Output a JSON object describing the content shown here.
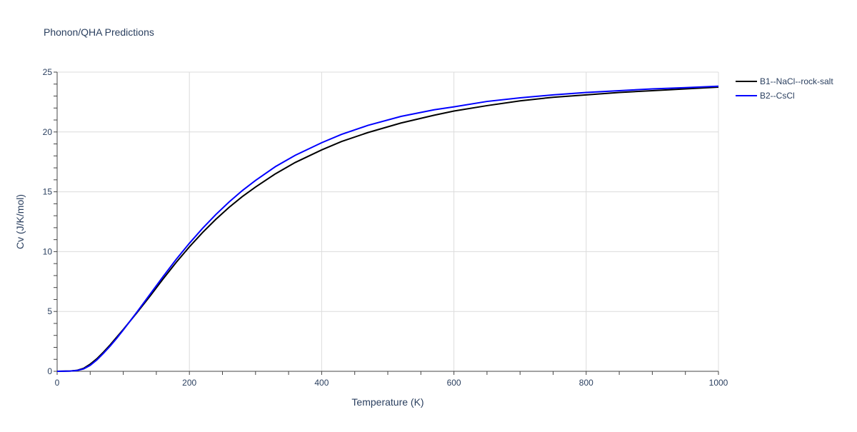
{
  "chart_data": {
    "type": "line",
    "title": "Phonon/QHA Predictions",
    "xlabel": "Temperature (K)",
    "ylabel": "Cv (J/K/mol)",
    "xlim": [
      0,
      1000
    ],
    "ylim": [
      0,
      25
    ],
    "x_ticks": [
      "0",
      "200",
      "400",
      "600",
      "800",
      "1000"
    ],
    "y_ticks": [
      "0",
      "5",
      "10",
      "15",
      "20",
      "25"
    ],
    "grid": true,
    "legend_position": "top-right",
    "x": [
      0,
      20,
      30,
      40,
      50,
      60,
      70,
      80,
      90,
      100,
      120,
      140,
      160,
      180,
      200,
      220,
      240,
      260,
      280,
      300,
      330,
      360,
      400,
      430,
      470,
      520,
      570,
      600,
      650,
      700,
      750,
      800,
      850,
      900,
      950,
      1000
    ],
    "series": [
      {
        "name": "B1--NaCl--rock-salt",
        "color": "#000000",
        "values": [
          0,
          0.02,
          0.08,
          0.25,
          0.6,
          1.05,
          1.6,
          2.2,
          2.85,
          3.5,
          4.85,
          6.25,
          7.7,
          9.1,
          10.4,
          11.6,
          12.7,
          13.7,
          14.6,
          15.4,
          16.5,
          17.45,
          18.5,
          19.2,
          19.95,
          20.75,
          21.4,
          21.75,
          22.2,
          22.6,
          22.9,
          23.1,
          23.3,
          23.45,
          23.6,
          23.75
        ]
      },
      {
        "name": "B2--CsCl",
        "color": "#0000ff",
        "values": [
          0,
          0.02,
          0.07,
          0.2,
          0.5,
          0.95,
          1.5,
          2.1,
          2.75,
          3.45,
          4.9,
          6.4,
          7.9,
          9.35,
          10.7,
          11.95,
          13.1,
          14.15,
          15.1,
          15.95,
          17.1,
          18.05,
          19.1,
          19.8,
          20.55,
          21.3,
          21.85,
          22.1,
          22.55,
          22.85,
          23.1,
          23.3,
          23.45,
          23.6,
          23.7,
          23.82
        ]
      }
    ]
  }
}
